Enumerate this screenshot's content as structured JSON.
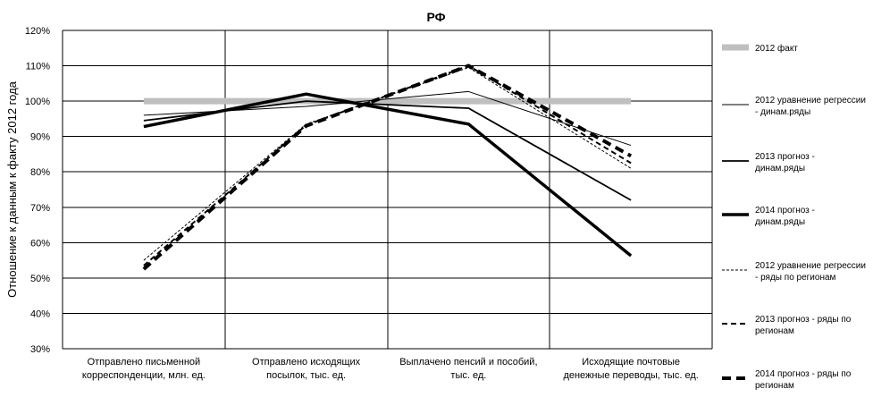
{
  "chart_data": {
    "type": "line",
    "title": "РФ",
    "ylabel": "Отношение к данным к факту 2012 года",
    "xlabel": "",
    "ylim": [
      30,
      120
    ],
    "yticks": [
      30,
      40,
      50,
      60,
      70,
      80,
      90,
      100,
      110,
      120
    ],
    "ytick_labels": [
      "30%",
      "40%",
      "50%",
      "60%",
      "70%",
      "80%",
      "90%",
      "100%",
      "110%",
      "120%"
    ],
    "grid": true,
    "legend_position": "right",
    "categories": [
      [
        "Отправлено письменной",
        "корреспонденции, млн. ед."
      ],
      [
        "Отправлено исходящих",
        "посылок, тыс. ед."
      ],
      [
        "Выплачено пенсий и пособий,",
        "тыс. ед."
      ],
      [
        "Исходящие почтовые",
        "денежные переводы, тыс. ед."
      ]
    ],
    "series": [
      {
        "name": "2012 факт",
        "legend_lines": [
          "2012 факт"
        ],
        "values": [
          100,
          100,
          100,
          100
        ],
        "color": "#bfbfbf",
        "width": 7,
        "dash": ""
      },
      {
        "name": "2012 уравнение регрессии - динам.ряды",
        "legend_lines": [
          "2012 уравнение регрессии",
          "- динам.ряды"
        ],
        "values": [
          96,
          98.5,
          102.7,
          87.5
        ],
        "color": "#000000",
        "width": 1,
        "dash": ""
      },
      {
        "name": "2013 прогноз - динам.ряды",
        "legend_lines": [
          "2013 прогноз -",
          "динам.ряды"
        ],
        "values": [
          94.5,
          100,
          98,
          72
        ],
        "color": "#000000",
        "width": 1.8,
        "dash": ""
      },
      {
        "name": "2014 прогноз - динам.ряды",
        "legend_lines": [
          "2014 прогноз -",
          "динам.ряды"
        ],
        "values": [
          92.8,
          102,
          93.5,
          56.3
        ],
        "color": "#000000",
        "width": 3.5,
        "dash": ""
      },
      {
        "name": "2012 уравнение регрессии - ряды по регионам",
        "legend_lines": [
          "2012 уравнение регрессии",
          "- ряды по регионам"
        ],
        "values": [
          55,
          93.5,
          109.5,
          81
        ],
        "color": "#000000",
        "width": 1,
        "dash": "3,2"
      },
      {
        "name": "2013 прогноз - ряды по регионам",
        "legend_lines": [
          "2013 прогноз - ряды по",
          "регионам"
        ],
        "values": [
          53.5,
          93.2,
          110,
          82.5
        ],
        "color": "#000000",
        "width": 2,
        "dash": "6,4"
      },
      {
        "name": "2014 прогноз - ряды по регионам",
        "legend_lines": [
          "2014 прогноз - ряды по",
          "регионам"
        ],
        "values": [
          52.5,
          93,
          110,
          84.5
        ],
        "color": "#000000",
        "width": 4,
        "dash": "10,6"
      }
    ]
  }
}
